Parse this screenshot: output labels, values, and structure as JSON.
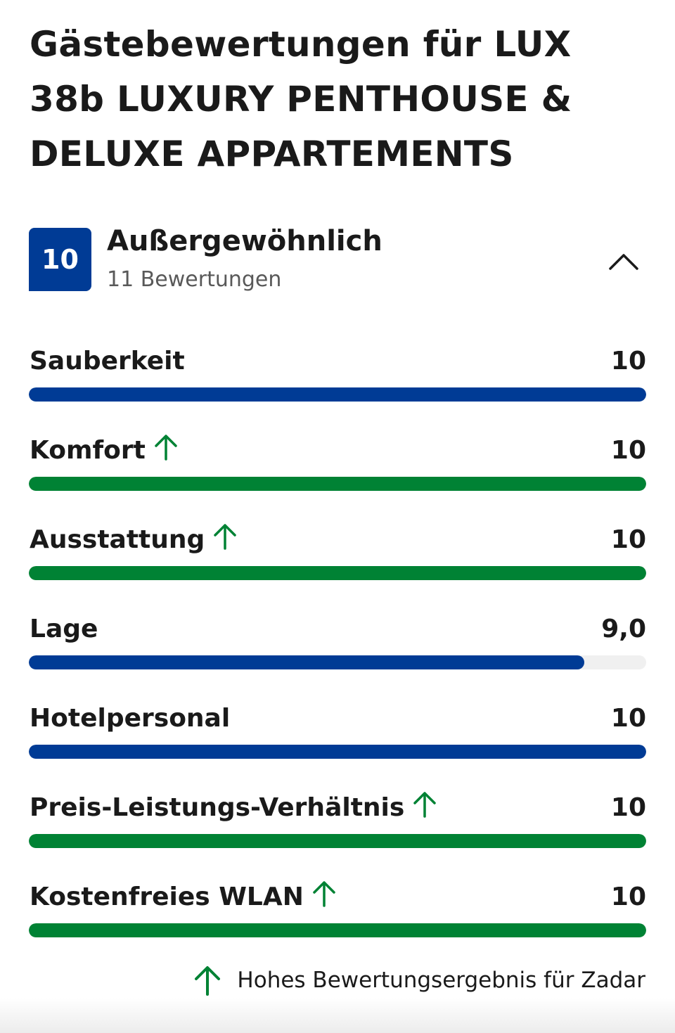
{
  "title": "Gästebewertungen für LUX 38b LUXURY PENTHOUSE & DELUXE APPARTEMENTS",
  "summary": {
    "score": "10",
    "label": "Außergewöhnlich",
    "review_count": "11 Bewertungen"
  },
  "colors": {
    "blue": "#003b95",
    "green": "#008234",
    "track": "#f0f0f0"
  },
  "categories": [
    {
      "name": "Sauberkeit",
      "score": "10",
      "value": 10,
      "max": 10,
      "high": false
    },
    {
      "name": "Komfort",
      "score": "10",
      "value": 10,
      "max": 10,
      "high": true
    },
    {
      "name": "Ausstattung",
      "score": "10",
      "value": 10,
      "max": 10,
      "high": true
    },
    {
      "name": "Lage",
      "score": "9,0",
      "value": 9,
      "max": 10,
      "high": false
    },
    {
      "name": "Hotelpersonal",
      "score": "10",
      "value": 10,
      "max": 10,
      "high": false
    },
    {
      "name": "Preis-Leistungs-Verhältnis",
      "score": "10",
      "value": 10,
      "max": 10,
      "high": true
    },
    {
      "name": "Kostenfreies WLAN",
      "score": "10",
      "value": 10,
      "max": 10,
      "high": true
    }
  ],
  "legend": {
    "icon": "arrow-up-icon",
    "text": "Hohes Bewertungsergebnis für Zadar"
  },
  "collapse_icon": "chevron-up-icon"
}
